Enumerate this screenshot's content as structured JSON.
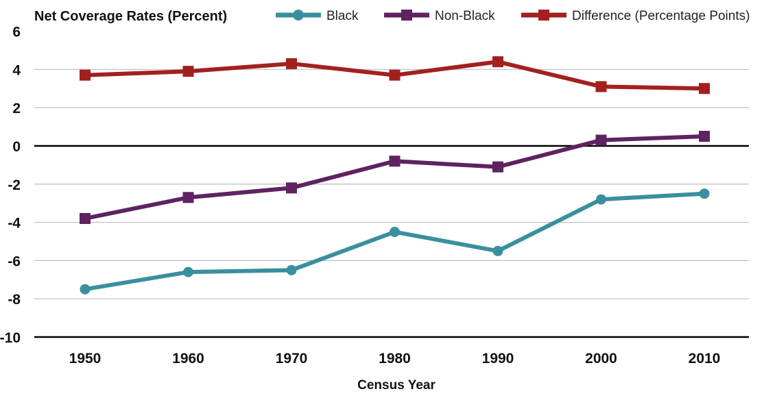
{
  "chart_data": {
    "type": "line",
    "title": "Net Coverage Rates (Percent)",
    "xlabel": "Census Year",
    "ylabel": "",
    "categories": [
      "1950",
      "1960",
      "1970",
      "1980",
      "1990",
      "2000",
      "2010"
    ],
    "yticks": [
      "6",
      "4",
      "2",
      "0",
      "-2",
      "-4",
      "-6",
      "-8",
      "-10"
    ],
    "ylim": [
      -10,
      6
    ],
    "grid": true,
    "legend_position": "top",
    "series": [
      {
        "name": "Black",
        "color": "#3a8f9e",
        "marker": "circle",
        "values": [
          -7.5,
          -6.6,
          -6.5,
          -4.5,
          -5.5,
          -2.8,
          -2.5
        ]
      },
      {
        "name": "Non-Black",
        "color": "#5e2360",
        "marker": "square",
        "values": [
          -3.8,
          -2.7,
          -2.2,
          -0.8,
          -1.1,
          0.3,
          0.5
        ]
      },
      {
        "name": "Difference (Percentage Points)",
        "color": "#a3201f",
        "marker": "square",
        "values": [
          3.7,
          3.9,
          4.3,
          3.7,
          4.4,
          3.1,
          3.0
        ]
      }
    ]
  }
}
